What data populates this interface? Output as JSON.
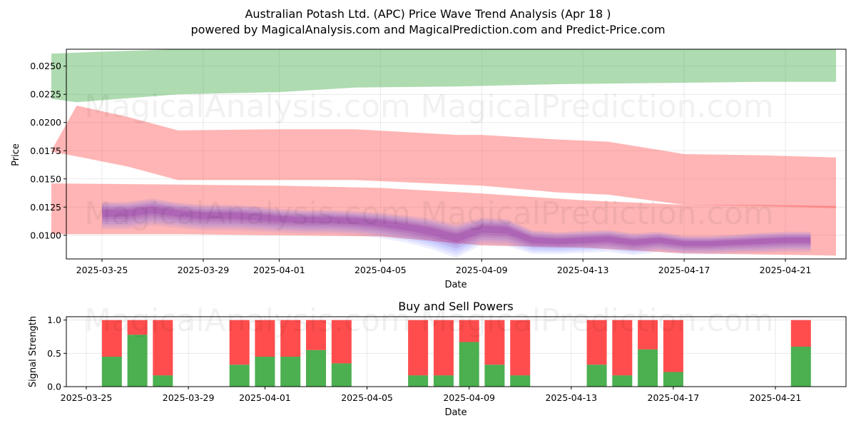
{
  "title": "Australian Potash Ltd. (APC) Price Wave Trend Analysis (Apr 18 )",
  "subtitle": "powered by MagicalAnalysis.com and MagicalPrediction.com and Predict-Price.com",
  "watermarks": [
    "MagicalAnalysis.com",
    "MagicalPrediction.com"
  ],
  "colors": {
    "upper_band": "#4caf50",
    "resistance_band": "#ff5c5c",
    "support_band": "#ff5c5c",
    "wave_blue": "#4d5cff",
    "wave_purple": "#8e2a9e",
    "buy": "#4caf50",
    "sell": "#ff4d4d"
  },
  "chart_data": [
    {
      "type": "area",
      "xlabel": "Date",
      "ylabel": "Price",
      "x_tick_labels": [
        "2025-03-25",
        "2025-03-29",
        "2025-04-01",
        "2025-04-05",
        "2025-04-09",
        "2025-04-13",
        "2025-04-17",
        "2025-04-21"
      ],
      "y_tick_labels": [
        "0.0100",
        "0.0125",
        "0.0150",
        "0.0175",
        "0.0200",
        "0.0225",
        "0.0250"
      ],
      "xlim": [
        "2025-03-23",
        "2025-04-23"
      ],
      "ylim": [
        0.0079,
        0.0265
      ],
      "grid": true,
      "bands": [
        {
          "role": "upper",
          "x": [
            "2025-03-23",
            "2025-03-24",
            "2025-03-28",
            "2025-04-01",
            "2025-04-04",
            "2025-04-08",
            "2025-04-12",
            "2025-04-16",
            "2025-04-20",
            "2025-04-23"
          ],
          "lower": [
            0.0221,
            0.0218,
            0.0225,
            0.0227,
            0.0231,
            0.0232,
            0.0234,
            0.0235,
            0.0236,
            0.0236
          ],
          "upper": [
            0.0261,
            0.0262,
            0.0265,
            0.0265,
            0.0265,
            0.0265,
            0.0265,
            0.0265,
            0.0265,
            0.0265
          ]
        },
        {
          "role": "resistance",
          "x": [
            "2025-03-23",
            "2025-03-24",
            "2025-03-26",
            "2025-03-28",
            "2025-04-01",
            "2025-04-04",
            "2025-04-08",
            "2025-04-09",
            "2025-04-12",
            "2025-04-14",
            "2025-04-17",
            "2025-04-20",
            "2025-04-23"
          ],
          "lower": [
            0.0174,
            0.017,
            0.0161,
            0.0149,
            0.0149,
            0.0149,
            0.0145,
            0.0144,
            0.0138,
            0.0136,
            0.0127,
            0.0126,
            0.0124
          ],
          "upper": [
            0.0175,
            0.0215,
            0.0205,
            0.0193,
            0.0194,
            0.0194,
            0.0189,
            0.0189,
            0.0185,
            0.0183,
            0.0172,
            0.0171,
            0.0169
          ]
        },
        {
          "role": "support",
          "x": [
            "2025-03-23",
            "2025-03-28",
            "2025-04-01",
            "2025-04-05",
            "2025-04-09",
            "2025-04-13",
            "2025-04-17",
            "2025-04-20",
            "2025-04-23"
          ],
          "lower": [
            0.0101,
            0.0101,
            0.01,
            0.0099,
            0.0091,
            0.0089,
            0.0084,
            0.0083,
            0.0082
          ],
          "upper": [
            0.0146,
            0.0145,
            0.0144,
            0.0142,
            0.0137,
            0.0131,
            0.0127,
            0.0127,
            0.0126
          ]
        }
      ],
      "wave": {
        "x": [
          "2025-03-25",
          "2025-03-26",
          "2025-03-27",
          "2025-03-28",
          "2025-03-29",
          "2025-03-30",
          "2025-03-31",
          "2025-04-01",
          "2025-04-02",
          "2025-04-03",
          "2025-04-04",
          "2025-04-05",
          "2025-04-06",
          "2025-04-07",
          "2025-04-08",
          "2025-04-09",
          "2025-04-10",
          "2025-04-11",
          "2025-04-12",
          "2025-04-13",
          "2025-04-14",
          "2025-04-15",
          "2025-04-16",
          "2025-04-17",
          "2025-04-18",
          "2025-04-19",
          "2025-04-20",
          "2025-04-21",
          "2025-04-22"
        ],
        "mid": [
          0.012,
          0.012,
          0.0123,
          0.012,
          0.0118,
          0.0118,
          0.0117,
          0.0115,
          0.0114,
          0.0114,
          0.0113,
          0.0111,
          0.0108,
          0.0104,
          0.0098,
          0.0106,
          0.0105,
          0.0096,
          0.0095,
          0.0096,
          0.0097,
          0.0094,
          0.0096,
          0.0093,
          0.0093,
          0.0094,
          0.0095,
          0.0096,
          0.0096
        ],
        "spread": [
          0.0016,
          0.0016,
          0.0016,
          0.0015,
          0.0015,
          0.0015,
          0.0015,
          0.0014,
          0.0014,
          0.0014,
          0.0014,
          0.0015,
          0.0016,
          0.0018,
          0.002,
          0.0016,
          0.0016,
          0.0014,
          0.0013,
          0.0013,
          0.0013,
          0.0013,
          0.0012,
          0.0011,
          0.0011,
          0.0011,
          0.0012,
          0.0012,
          0.0012
        ]
      }
    },
    {
      "type": "bar",
      "title": "Buy and Sell Powers",
      "xlabel": "Date",
      "ylabel": "Signal Strength",
      "x_tick_labels": [
        "2025-03-25",
        "2025-03-29",
        "2025-04-01",
        "2025-04-05",
        "2025-04-09",
        "2025-04-13",
        "2025-04-17",
        "2025-04-21"
      ],
      "y_tick_labels": [
        "0.0",
        "0.5",
        "1.0"
      ],
      "ylim": [
        0,
        1.05
      ],
      "grid": true,
      "dates": [
        "2025-03-26",
        "2025-03-27",
        "2025-03-28",
        "2025-03-31",
        "2025-04-01",
        "2025-04-02",
        "2025-04-03",
        "2025-04-04",
        "2025-04-07",
        "2025-04-08",
        "2025-04-09",
        "2025-04-10",
        "2025-04-11",
        "2025-04-14",
        "2025-04-15",
        "2025-04-16",
        "2025-04-17",
        "2025-04-22"
      ],
      "series": [
        {
          "name": "Buy",
          "values": [
            0.45,
            0.78,
            0.17,
            0.33,
            0.45,
            0.45,
            0.55,
            0.35,
            0.17,
            0.17,
            0.67,
            0.33,
            0.17,
            0.33,
            0.17,
            0.56,
            0.22,
            0.6
          ]
        },
        {
          "name": "Sell",
          "values": [
            0.55,
            0.22,
            0.83,
            0.67,
            0.55,
            0.55,
            0.45,
            0.65,
            0.83,
            0.83,
            0.33,
            0.67,
            0.83,
            0.67,
            0.83,
            0.44,
            0.78,
            0.4
          ]
        }
      ]
    }
  ]
}
